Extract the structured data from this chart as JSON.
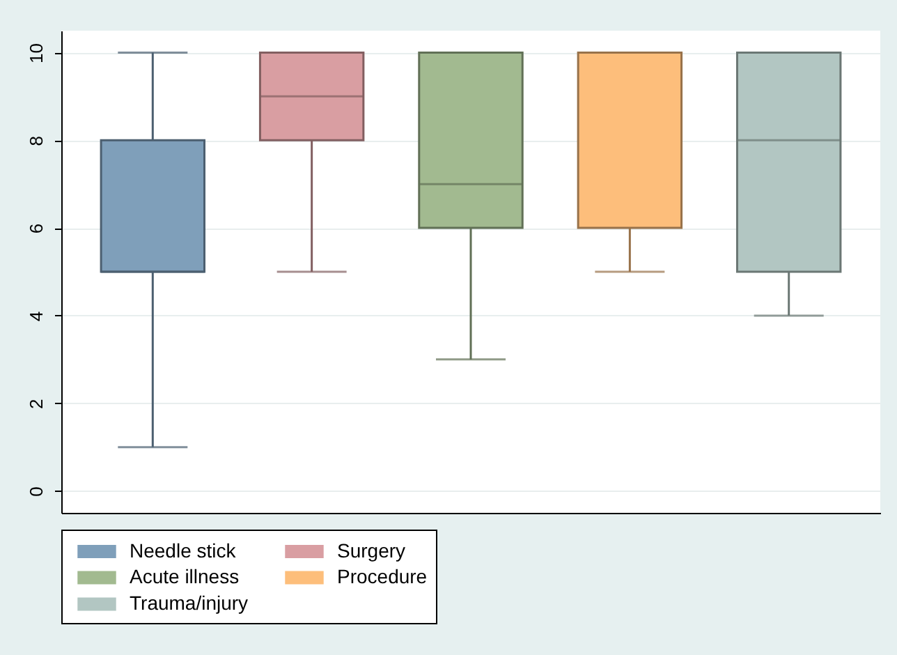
{
  "chart_data": {
    "type": "box",
    "categories": [
      null
    ],
    "ylim": [
      -0.5,
      10.5
    ],
    "yticks": [
      0,
      2,
      4,
      6,
      8,
      10
    ],
    "grid": "y",
    "legend": "bottom",
    "series": [
      {
        "name": "Needle stick",
        "color": "#7f9fba",
        "boxes": [
          {
            "low": 1,
            "q1": 5,
            "median": 5,
            "q3": 8,
            "high": 10
          }
        ]
      },
      {
        "name": "Surgery",
        "color": "#d99ea2",
        "boxes": [
          {
            "low": 5,
            "q1": 8,
            "median": 9,
            "q3": 10,
            "high": 10
          }
        ]
      },
      {
        "name": "Acute illness",
        "color": "#a2ba90",
        "boxes": [
          {
            "low": 3,
            "q1": 6,
            "median": 7,
            "q3": 10,
            "high": 10
          }
        ]
      },
      {
        "name": "Procedure",
        "color": "#fdbe7b",
        "boxes": [
          {
            "low": 5,
            "q1": 6,
            "median": 10,
            "q3": 10,
            "high": 10
          }
        ]
      },
      {
        "name": "Trauma/injury",
        "color": "#b2c6c2",
        "boxes": [
          {
            "low": 4,
            "q1": 5,
            "median": 8,
            "q3": 10,
            "high": 10
          }
        ]
      }
    ]
  }
}
